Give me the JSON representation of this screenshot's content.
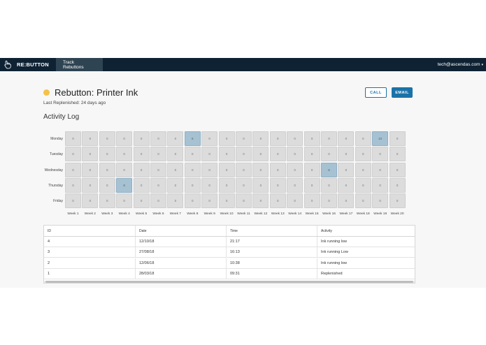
{
  "app": {
    "brand": "RE:BUTTON",
    "brand_icon": "hand-pointer-icon",
    "nav_tab": "Track Rebuttons",
    "user_email": "tech@ascendas.com"
  },
  "header": {
    "title": "Rebutton: Printer Ink",
    "status_color": "#f3c247",
    "subtitle": "Last Replenished: 24 days ago",
    "call_label": "CALL",
    "email_label": "EMAIL"
  },
  "activity": {
    "section_title": "Activity Log",
    "days": [
      "Monday",
      "Tuesday",
      "Wednesday",
      "Thursday",
      "Friday"
    ],
    "weeks": [
      "Week 1",
      "Week 2",
      "Week 3",
      "Week 4",
      "Week 5",
      "Week 6",
      "Week 7",
      "Week 8",
      "Week 9",
      "Week 10",
      "Week 11",
      "Week 12",
      "Week 13",
      "Week 14",
      "Week 15",
      "Week 16",
      "Week 17",
      "Week 18",
      "Week 19",
      "Week 20"
    ],
    "values": [
      [
        "0",
        "0",
        "0",
        "0",
        "0",
        "0",
        "0",
        "6",
        "0",
        "0",
        "0",
        "0",
        "0",
        "0",
        "0",
        "0",
        "0",
        "0",
        "10",
        "0"
      ],
      [
        "0",
        "0",
        "0",
        "0",
        "0",
        "0",
        "0",
        "0",
        "0",
        "0",
        "0",
        "0",
        "0",
        "0",
        "0",
        "0",
        "0",
        "0",
        "0",
        "0"
      ],
      [
        "0",
        "0",
        "0",
        "0",
        "0",
        "0",
        "0",
        "0",
        "0",
        "0",
        "0",
        "0",
        "0",
        "0",
        "0",
        "8",
        "0",
        "0",
        "0",
        "0"
      ],
      [
        "0",
        "0",
        "0",
        "8",
        "0",
        "0",
        "0",
        "0",
        "0",
        "0",
        "0",
        "0",
        "0",
        "0",
        "0",
        "0",
        "0",
        "0",
        "0",
        "0"
      ],
      [
        "0",
        "0",
        "0",
        "0",
        "0",
        "0",
        "0",
        "0",
        "0",
        "0",
        "0",
        "0",
        "0",
        "0",
        "0",
        "0",
        "0",
        "0",
        "0",
        "0"
      ]
    ],
    "active_color": "#a6c1d2",
    "inactive_color": "#dcdcdc"
  },
  "table": {
    "headers": [
      "ID",
      "Date",
      "Time",
      "Activity"
    ],
    "rows": [
      [
        "4",
        "12/10/18",
        "21:17",
        "Ink running low"
      ],
      [
        "3",
        "27/08/18",
        "16:13",
        "Ink running Low"
      ],
      [
        "2",
        "12/06/18",
        "10:38",
        "Ink running low"
      ],
      [
        "1",
        "28/03/18",
        "09:31",
        "Replenished"
      ]
    ]
  }
}
